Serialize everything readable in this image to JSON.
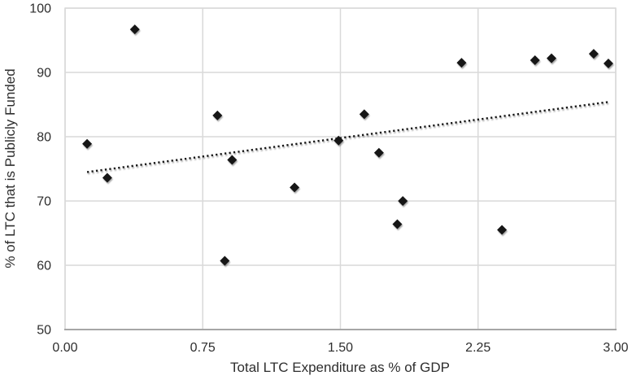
{
  "chart_data": {
    "type": "scatter",
    "title": "",
    "xlabel": "Total LTC Expenditure as % of GDP",
    "ylabel": "% of LTC that is Publicly Funded",
    "xlim": [
      0.0,
      3.0
    ],
    "ylim": [
      50,
      100
    ],
    "x_tick_values": [
      0.0,
      0.75,
      1.5,
      2.25,
      3.0
    ],
    "x_tick_labels": [
      "0.00",
      "0.75",
      "1.50",
      "2.25",
      "3.00"
    ],
    "y_tick_values": [
      50,
      60,
      70,
      80,
      90,
      100
    ],
    "y_tick_labels": [
      "50",
      "60",
      "70",
      "80",
      "90",
      "100"
    ],
    "grid": true,
    "legend": false,
    "series": [
      {
        "name": "countries",
        "marker": "diamond",
        "color": "#141414",
        "points": [
          [
            0.12,
            78.9
          ],
          [
            0.23,
            73.6
          ],
          [
            0.38,
            96.7
          ],
          [
            0.83,
            83.3
          ],
          [
            0.87,
            60.7
          ],
          [
            0.91,
            76.4
          ],
          [
            1.25,
            72.1
          ],
          [
            1.49,
            79.4
          ],
          [
            1.63,
            83.5
          ],
          [
            1.71,
            77.5
          ],
          [
            1.81,
            66.4
          ],
          [
            1.84,
            70.0
          ],
          [
            2.16,
            91.5
          ],
          [
            2.38,
            65.5
          ],
          [
            2.56,
            91.9
          ],
          [
            2.65,
            92.2
          ],
          [
            2.88,
            92.9
          ],
          [
            2.96,
            91.4
          ]
        ]
      }
    ],
    "trendline": {
      "style": "dotted",
      "color": "#141414",
      "x1": 0.12,
      "y1": 74.5,
      "x2": 2.96,
      "y2": 85.4
    }
  },
  "colors": {
    "background": "#ffffff",
    "gridline": "#d9d9d9",
    "plot_border": "#d9d9d9",
    "axis_line": "#a6a6a6",
    "marker": "#141414",
    "text": "#2e2e2e"
  }
}
